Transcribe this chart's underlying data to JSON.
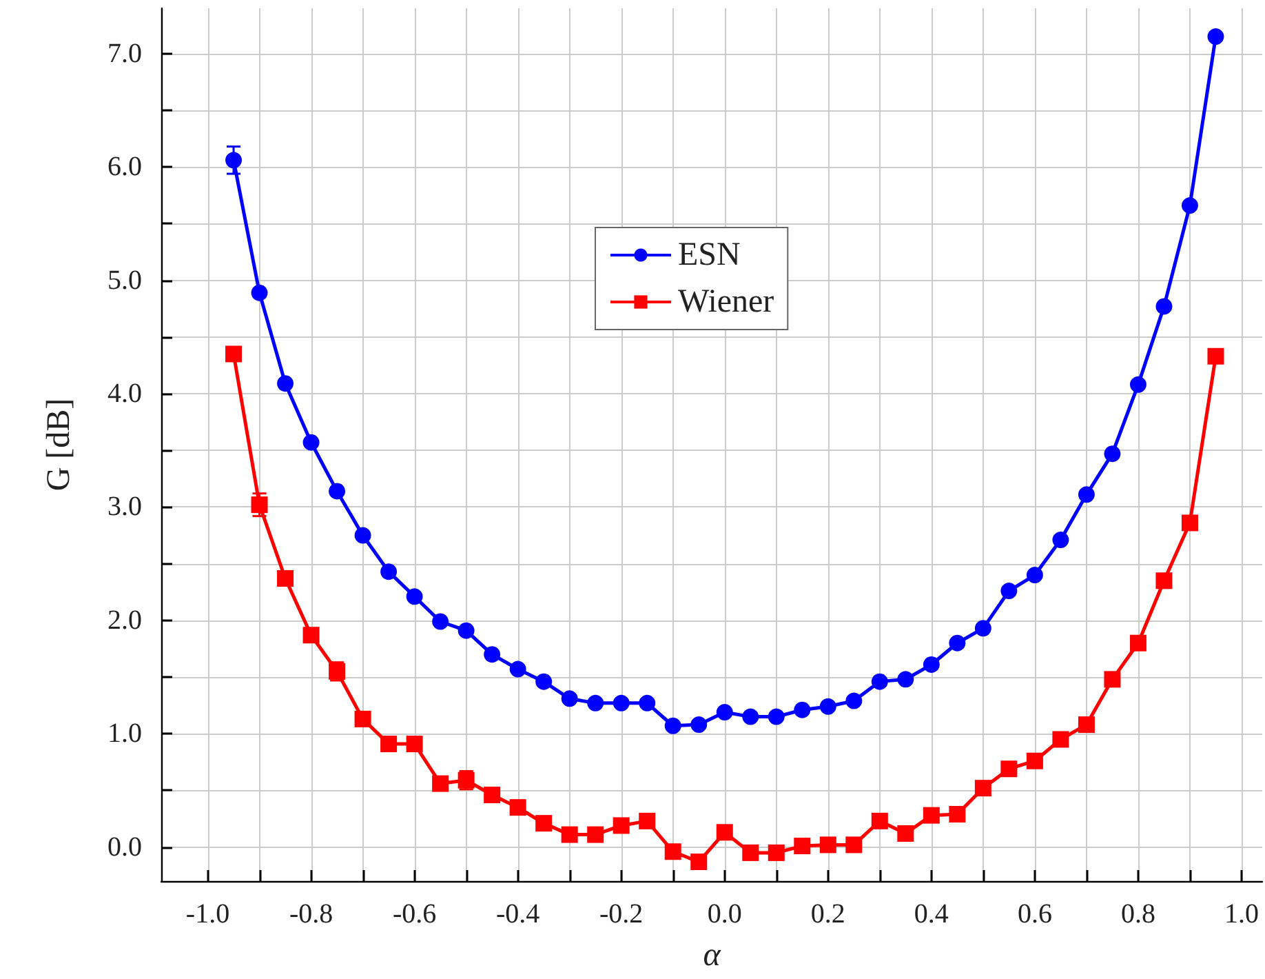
{
  "chart_data": {
    "type": "line",
    "xlabel": "α",
    "ylabel": "G [dB]",
    "x": [
      -0.95,
      -0.9,
      -0.85,
      -0.8,
      -0.75,
      -0.7,
      -0.65,
      -0.6,
      -0.55,
      -0.5,
      -0.45,
      -0.4,
      -0.35,
      -0.3,
      -0.25,
      -0.2,
      -0.15,
      -0.1,
      -0.05,
      0,
      0.05,
      0.1,
      0.15,
      0.2,
      0.25,
      0.3,
      0.35,
      0.4,
      0.45,
      0.5,
      0.55,
      0.6,
      0.65,
      0.7,
      0.75,
      0.8,
      0.85,
      0.9,
      0.95
    ],
    "series": [
      {
        "name": "ESN",
        "color": "#0000ff",
        "marker": "circle",
        "values": [
          6.06,
          4.89,
          4.09,
          3.57,
          3.14,
          2.75,
          2.43,
          2.21,
          1.99,
          1.91,
          1.7,
          1.57,
          1.46,
          1.31,
          1.27,
          1.27,
          1.27,
          1.07,
          1.08,
          1.19,
          1.15,
          1.15,
          1.21,
          1.24,
          1.29,
          1.46,
          1.48,
          1.61,
          1.8,
          1.93,
          2.26,
          2.4,
          2.71,
          3.11,
          3.47,
          4.08,
          4.77,
          5.66,
          7.15
        ],
        "errors": [
          0.12,
          null,
          null,
          null,
          null,
          null,
          null,
          null,
          null,
          null,
          null,
          null,
          null,
          null,
          null,
          null,
          null,
          null,
          null,
          null,
          null,
          null,
          null,
          null,
          null,
          null,
          null,
          null,
          null,
          null,
          null,
          null,
          null,
          null,
          null,
          null,
          null,
          null,
          null
        ]
      },
      {
        "name": "Wiener",
        "color": "#ff0000",
        "marker": "square",
        "values": [
          4.35,
          3.02,
          2.37,
          1.87,
          1.55,
          1.13,
          0.91,
          0.91,
          0.56,
          0.59,
          0.46,
          0.35,
          0.21,
          0.11,
          0.11,
          0.19,
          0.23,
          -0.04,
          -0.13,
          0.13,
          -0.05,
          -0.05,
          0.01,
          0.02,
          0.02,
          0.23,
          0.12,
          0.28,
          0.29,
          0.52,
          0.69,
          0.76,
          0.95,
          1.08,
          1.48,
          1.8,
          2.35,
          2.86,
          4.33
        ],
        "errors": [
          null,
          0.1,
          null,
          null,
          0.08,
          null,
          null,
          null,
          null,
          0.08,
          0.06,
          null,
          null,
          null,
          null,
          null,
          0.05,
          null,
          null,
          0.06,
          null,
          null,
          null,
          null,
          null,
          null,
          null,
          null,
          null,
          null,
          null,
          null,
          null,
          null,
          null,
          null,
          null,
          null,
          null
        ]
      }
    ],
    "xlim": [
      -1.09,
      1.04
    ],
    "xticks": [
      {
        "value": -1.0,
        "label": "-1.0"
      },
      {
        "value": -0.9,
        "label": null
      },
      {
        "value": -0.8,
        "label": "-0.8"
      },
      {
        "value": -0.7,
        "label": null
      },
      {
        "value": -0.6,
        "label": "-0.6"
      },
      {
        "value": -0.5,
        "label": null
      },
      {
        "value": -0.4,
        "label": "-0.4"
      },
      {
        "value": -0.3,
        "label": null
      },
      {
        "value": -0.2,
        "label": "-0.2"
      },
      {
        "value": -0.1,
        "label": null
      },
      {
        "value": 0,
        "label": "0.0"
      },
      {
        "value": 0.1,
        "label": null
      },
      {
        "value": 0.2,
        "label": "0.2"
      },
      {
        "value": 0.3,
        "label": null
      },
      {
        "value": 0.4,
        "label": "0.4"
      },
      {
        "value": 0.5,
        "label": null
      },
      {
        "value": 0.6,
        "label": "0.6"
      },
      {
        "value": 0.7,
        "label": null
      },
      {
        "value": 0.8,
        "label": "0.8"
      },
      {
        "value": 0.9,
        "label": null
      },
      {
        "value": 1.0,
        "label": "1.0"
      }
    ],
    "ylim": [
      -0.3,
      7.4
    ],
    "yticks": [
      {
        "value": 0,
        "label": "0.0"
      },
      {
        "value": 0.5,
        "label": null
      },
      {
        "value": 1,
        "label": "1.0"
      },
      {
        "value": 1.5,
        "label": null
      },
      {
        "value": 2,
        "label": "2.0"
      },
      {
        "value": 2.5,
        "label": null
      },
      {
        "value": 3,
        "label": "3.0"
      },
      {
        "value": 3.5,
        "label": null
      },
      {
        "value": 4,
        "label": "4.0"
      },
      {
        "value": 4.5,
        "label": null
      },
      {
        "value": 5,
        "label": "5.0"
      },
      {
        "value": 5.5,
        "label": null
      },
      {
        "value": 6,
        "label": "6.0"
      },
      {
        "value": 6.5,
        "label": null
      },
      {
        "value": 7,
        "label": "7.0"
      }
    ],
    "grid": true,
    "legend": "top",
    "line_style": "solid"
  }
}
